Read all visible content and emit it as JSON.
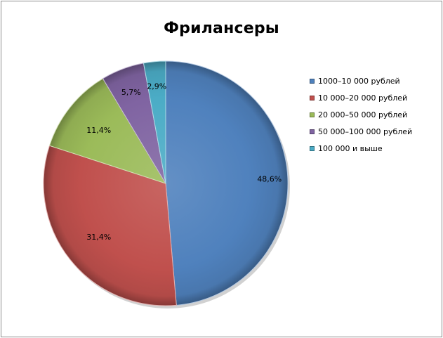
{
  "chart_data": {
    "type": "pie",
    "title": "Фрилансеры",
    "categories": [
      "1000–10 000 рублей",
      "10 000–20 000 рублей",
      "20 000–50 000 рублей",
      "50 000–100 000 рублей",
      "100 000 и выше"
    ],
    "values": [
      48.6,
      31.4,
      11.4,
      5.7,
      2.9
    ],
    "data_labels": [
      "48,6%",
      "31,4%",
      "11,4%",
      "5,7%",
      "2,9%"
    ],
    "colors": [
      "#4f81bd",
      "#c0504d",
      "#9bbb59",
      "#8064a2",
      "#4bacc6"
    ],
    "legend_position": "right",
    "start_angle": "12 o'clock, clockwise"
  }
}
